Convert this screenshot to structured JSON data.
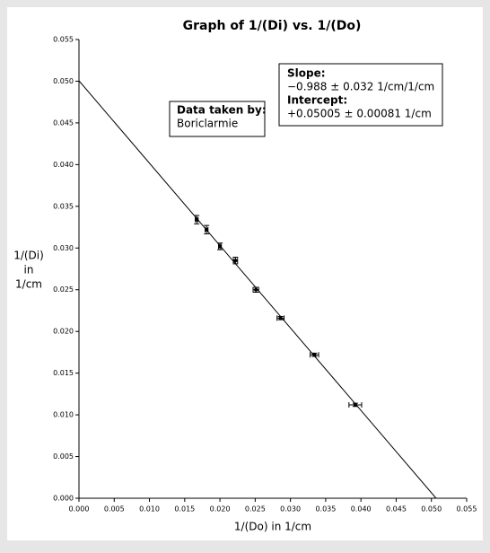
{
  "chart_data": {
    "type": "scatter",
    "title": "Graph of 1/(Di) vs. 1/(Do)",
    "x_label": "1/(Do) in 1/cm",
    "y_label": [
      "1/(Di)",
      "in",
      "1/cm"
    ],
    "xlim": [
      0,
      0.055
    ],
    "ylim": [
      0,
      0.055
    ],
    "xticks": [
      {
        "value": 0,
        "label": "0.000"
      },
      {
        "value": 0.005,
        "label": "0.005"
      },
      {
        "value": 0.01,
        "label": "0.010"
      },
      {
        "value": 0.015,
        "label": "0.015"
      },
      {
        "value": 0.02,
        "label": "0.020"
      },
      {
        "value": 0.025,
        "label": "0.025"
      },
      {
        "value": 0.03,
        "label": "0.030"
      },
      {
        "value": 0.035,
        "label": "0.035"
      },
      {
        "value": 0.04,
        "label": "0.040"
      },
      {
        "value": 0.045,
        "label": "0.045"
      },
      {
        "value": 0.05,
        "label": "0.050"
      },
      {
        "value": 0.055,
        "label": "0.055"
      }
    ],
    "yticks": [
      {
        "value": 0,
        "label": "0.000"
      },
      {
        "value": 0.005,
        "label": "0.005"
      },
      {
        "value": 0.01,
        "label": "0.010"
      },
      {
        "value": 0.015,
        "label": "0.015"
      },
      {
        "value": 0.02,
        "label": "0.020"
      },
      {
        "value": 0.025,
        "label": "0.025"
      },
      {
        "value": 0.03,
        "label": "0.030"
      },
      {
        "value": 0.035,
        "label": "0.035"
      },
      {
        "value": 0.04,
        "label": "0.040"
      },
      {
        "value": 0.045,
        "label": "0.045"
      },
      {
        "value": 0.05,
        "label": "0.050"
      },
      {
        "value": 0.055,
        "label": "0.055"
      }
    ],
    "series": [
      {
        "color": "#000000",
        "x": [
          0.0167,
          0.0181,
          0.02,
          0.0222,
          0.0251,
          0.0286,
          0.0334,
          0.0392
        ],
        "y": [
          0.0334,
          0.0322,
          0.0302,
          0.0285,
          0.025,
          0.0216,
          0.0172,
          0.0112
        ],
        "xerr": [
          0.0002,
          0.0002,
          0.0002,
          0.0003,
          0.0004,
          0.0005,
          0.0006,
          0.0009
        ],
        "yerr": [
          0.0005,
          0.0005,
          0.0004,
          0.0004,
          0.0003,
          0.0002,
          0.0002,
          0.0002
        ]
      }
    ],
    "fit": {
      "color": "#000000",
      "x": [
        0,
        0.05066
      ],
      "y": [
        0.05005,
        0
      ]
    },
    "annotations": {
      "slope_label": "Slope:",
      "slope": "−0.988 ± 0.032 1/cm/1/cm",
      "intercept_label": "Intercept:",
      "intercept": "+0.05005 ± 0.00081 1/cm",
      "taken_label": "Data taken by:",
      "taken": "Boriclarmie"
    }
  }
}
